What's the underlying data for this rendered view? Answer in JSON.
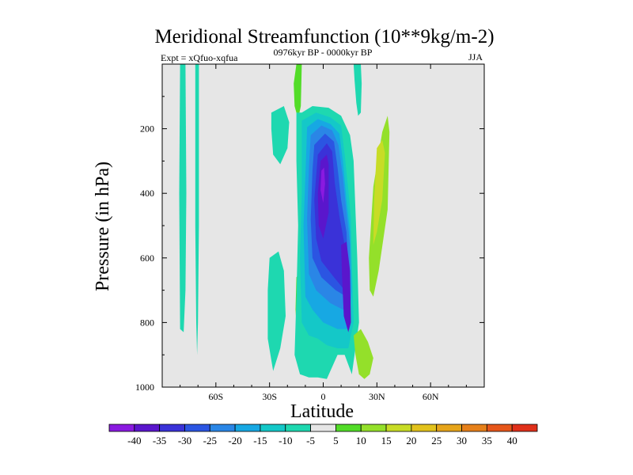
{
  "chart_data": {
    "type": "contour",
    "title": "Meridional Streamfunction (10**9kg/m-2)",
    "subtitle_left": "Expt = xQfuo-xqfua",
    "subtitle_center": "0976kyr BP - 0000kyr BP",
    "subtitle_right": "JJA",
    "xlabel": "Latitude",
    "ylabel": "Pressure (in hPa)",
    "xlim": [
      -90,
      90
    ],
    "ylim": [
      0,
      1000
    ],
    "y_inverted": true,
    "xticks": [
      {
        "value": -60,
        "label": "60S"
      },
      {
        "value": -30,
        "label": "30S"
      },
      {
        "value": 0,
        "label": "0"
      },
      {
        "value": 30,
        "label": "30N"
      },
      {
        "value": 60,
        "label": "60N"
      }
    ],
    "yticks": [
      {
        "value": 200,
        "label": "200"
      },
      {
        "value": 400,
        "label": "400"
      },
      {
        "value": 600,
        "label": "600"
      },
      {
        "value": 800,
        "label": "800"
      },
      {
        "value": 1000,
        "label": "1000"
      }
    ],
    "colorbar": {
      "labels": [
        "-40",
        "-35",
        "-30",
        "-25",
        "-20",
        "-15",
        "-10",
        "-5",
        "5",
        "10",
        "15",
        "20",
        "25",
        "30",
        "35",
        "40"
      ],
      "colors": [
        "#8a1ae0",
        "#5a16cc",
        "#3a32d8",
        "#2b55e2",
        "#2a86e6",
        "#17a8e3",
        "#14c8c8",
        "#1ed8b0",
        "#e6e6e6",
        "#52dc28",
        "#94e02a",
        "#c8dc26",
        "#e2c21c",
        "#e6a41a",
        "#e6801a",
        "#e6561a",
        "#e0301a"
      ]
    },
    "background_value_color": "#e6e6e6",
    "regions": [
      {
        "x": [
          -80,
          -77,
          -76.5,
          -77,
          -78,
          -80,
          -80.5,
          -80
        ],
        "y": [
          0,
          0,
          400,
          700,
          830,
          820,
          400,
          0
        ],
        "level": -5
      },
      {
        "x": [
          -71.5,
          -69.5,
          -69.5,
          -70,
          -70.5,
          -71,
          -71.5
        ],
        "y": [
          0,
          0,
          500,
          800,
          900,
          800,
          500
        ],
        "level": -5
      },
      {
        "x": [
          -29,
          -22,
          -19,
          -20,
          -24,
          -28,
          -29
        ],
        "y": [
          150,
          130,
          180,
          260,
          310,
          280,
          200
        ],
        "level": -5
      },
      {
        "x": [
          -30,
          -25,
          -22,
          -21,
          -24,
          -28,
          -31,
          -31
        ],
        "y": [
          600,
          580,
          640,
          780,
          880,
          950,
          850,
          700
        ],
        "level": -5
      },
      {
        "x": [
          -15,
          -12,
          -12.5,
          -14,
          -16,
          -16.5
        ],
        "y": [
          0,
          0,
          130,
          170,
          130,
          60
        ],
        "level": 5
      },
      {
        "x": [
          -15,
          -12,
          -10.5,
          -12,
          -14.5,
          -15.5
        ],
        "y": [
          660,
          640,
          750,
          880,
          850,
          760
        ],
        "level": 5
      },
      {
        "x": [
          -15,
          -12,
          -6,
          3,
          10,
          15,
          17,
          18,
          19,
          20,
          16,
          12,
          8,
          2,
          -3,
          -8,
          -13,
          -16,
          -15,
          -14,
          -15
        ],
        "y": [
          150,
          150,
          130,
          135,
          160,
          220,
          300,
          450,
          600,
          800,
          960,
          900,
          900,
          975,
          970,
          970,
          960,
          900,
          720,
          500,
          300
        ],
        "level": -5
      },
      {
        "x": [
          -12,
          -4,
          4,
          10,
          12,
          14,
          15.5,
          16,
          17,
          14,
          8,
          2,
          -3,
          -8,
          -12,
          -13,
          -12
        ],
        "y": [
          175,
          150,
          165,
          190,
          280,
          390,
          480,
          620,
          800,
          880,
          880,
          870,
          850,
          840,
          800,
          600,
          400
        ],
        "level": -10
      },
      {
        "x": [
          -9,
          -3,
          4,
          9,
          11,
          13,
          15,
          16,
          14,
          8,
          0,
          -6,
          -10,
          -11,
          -10
        ],
        "y": [
          195,
          170,
          185,
          215,
          300,
          420,
          520,
          700,
          820,
          820,
          800,
          760,
          720,
          500,
          350
        ],
        "level": -15
      },
      {
        "x": [
          -7,
          -1,
          5,
          8.5,
          11,
          13,
          15,
          15,
          11,
          4,
          -4,
          -8,
          -9,
          -8
        ],
        "y": [
          220,
          190,
          205,
          250,
          350,
          460,
          560,
          740,
          760,
          740,
          700,
          650,
          480,
          320
        ],
        "level": -20
      },
      {
        "x": [
          -5,
          1,
          6,
          8,
          10,
          13,
          14,
          13,
          7,
          -1,
          -6,
          -7,
          -6
        ],
        "y": [
          250,
          215,
          240,
          320,
          420,
          520,
          640,
          720,
          700,
          660,
          600,
          480,
          330
        ],
        "level": -25
      },
      {
        "x": [
          -3,
          2,
          5,
          6.5,
          9,
          12,
          13,
          12,
          6,
          -1,
          -4,
          -5
        ],
        "y": [
          280,
          245,
          270,
          370,
          470,
          560,
          670,
          700,
          660,
          610,
          540,
          420
        ],
        "level": -30
      },
      {
        "x": [
          -1.5,
          2,
          3,
          3,
          0,
          -2.5,
          -3
        ],
        "y": [
          300,
          280,
          310,
          460,
          540,
          500,
          400
        ],
        "level": -35
      },
      {
        "x": [
          10,
          13,
          15,
          15.5,
          14,
          11.5,
          10.5
        ],
        "y": [
          560,
          550,
          640,
          800,
          830,
          780,
          650
        ],
        "level": -35
      },
      {
        "x": [
          -1,
          0.5,
          1,
          0,
          -1.5
        ],
        "y": [
          330,
          320,
          370,
          430,
          390
        ],
        "level": -40
      },
      {
        "x": [
          17,
          21,
          21.5,
          21,
          19.5,
          18.5,
          17.5
        ],
        "y": [
          0,
          0,
          60,
          150,
          160,
          120,
          50
        ],
        "level": -5
      },
      {
        "x": [
          33,
          36,
          37,
          36,
          31,
          28,
          26,
          25.5,
          28
        ],
        "y": [
          210,
          160,
          210,
          450,
          640,
          720,
          700,
          600,
          380
        ],
        "level": 10
      },
      {
        "x": [
          30,
          33,
          34.5,
          33,
          30,
          28,
          28.5
        ],
        "y": [
          260,
          235,
          275,
          420,
          520,
          560,
          420
        ],
        "level": 15
      },
      {
        "x": [
          17,
          21,
          25,
          28,
          26,
          23,
          20,
          18
        ],
        "y": [
          840,
          820,
          860,
          910,
          960,
          975,
          960,
          900
        ],
        "level": 10
      }
    ]
  }
}
